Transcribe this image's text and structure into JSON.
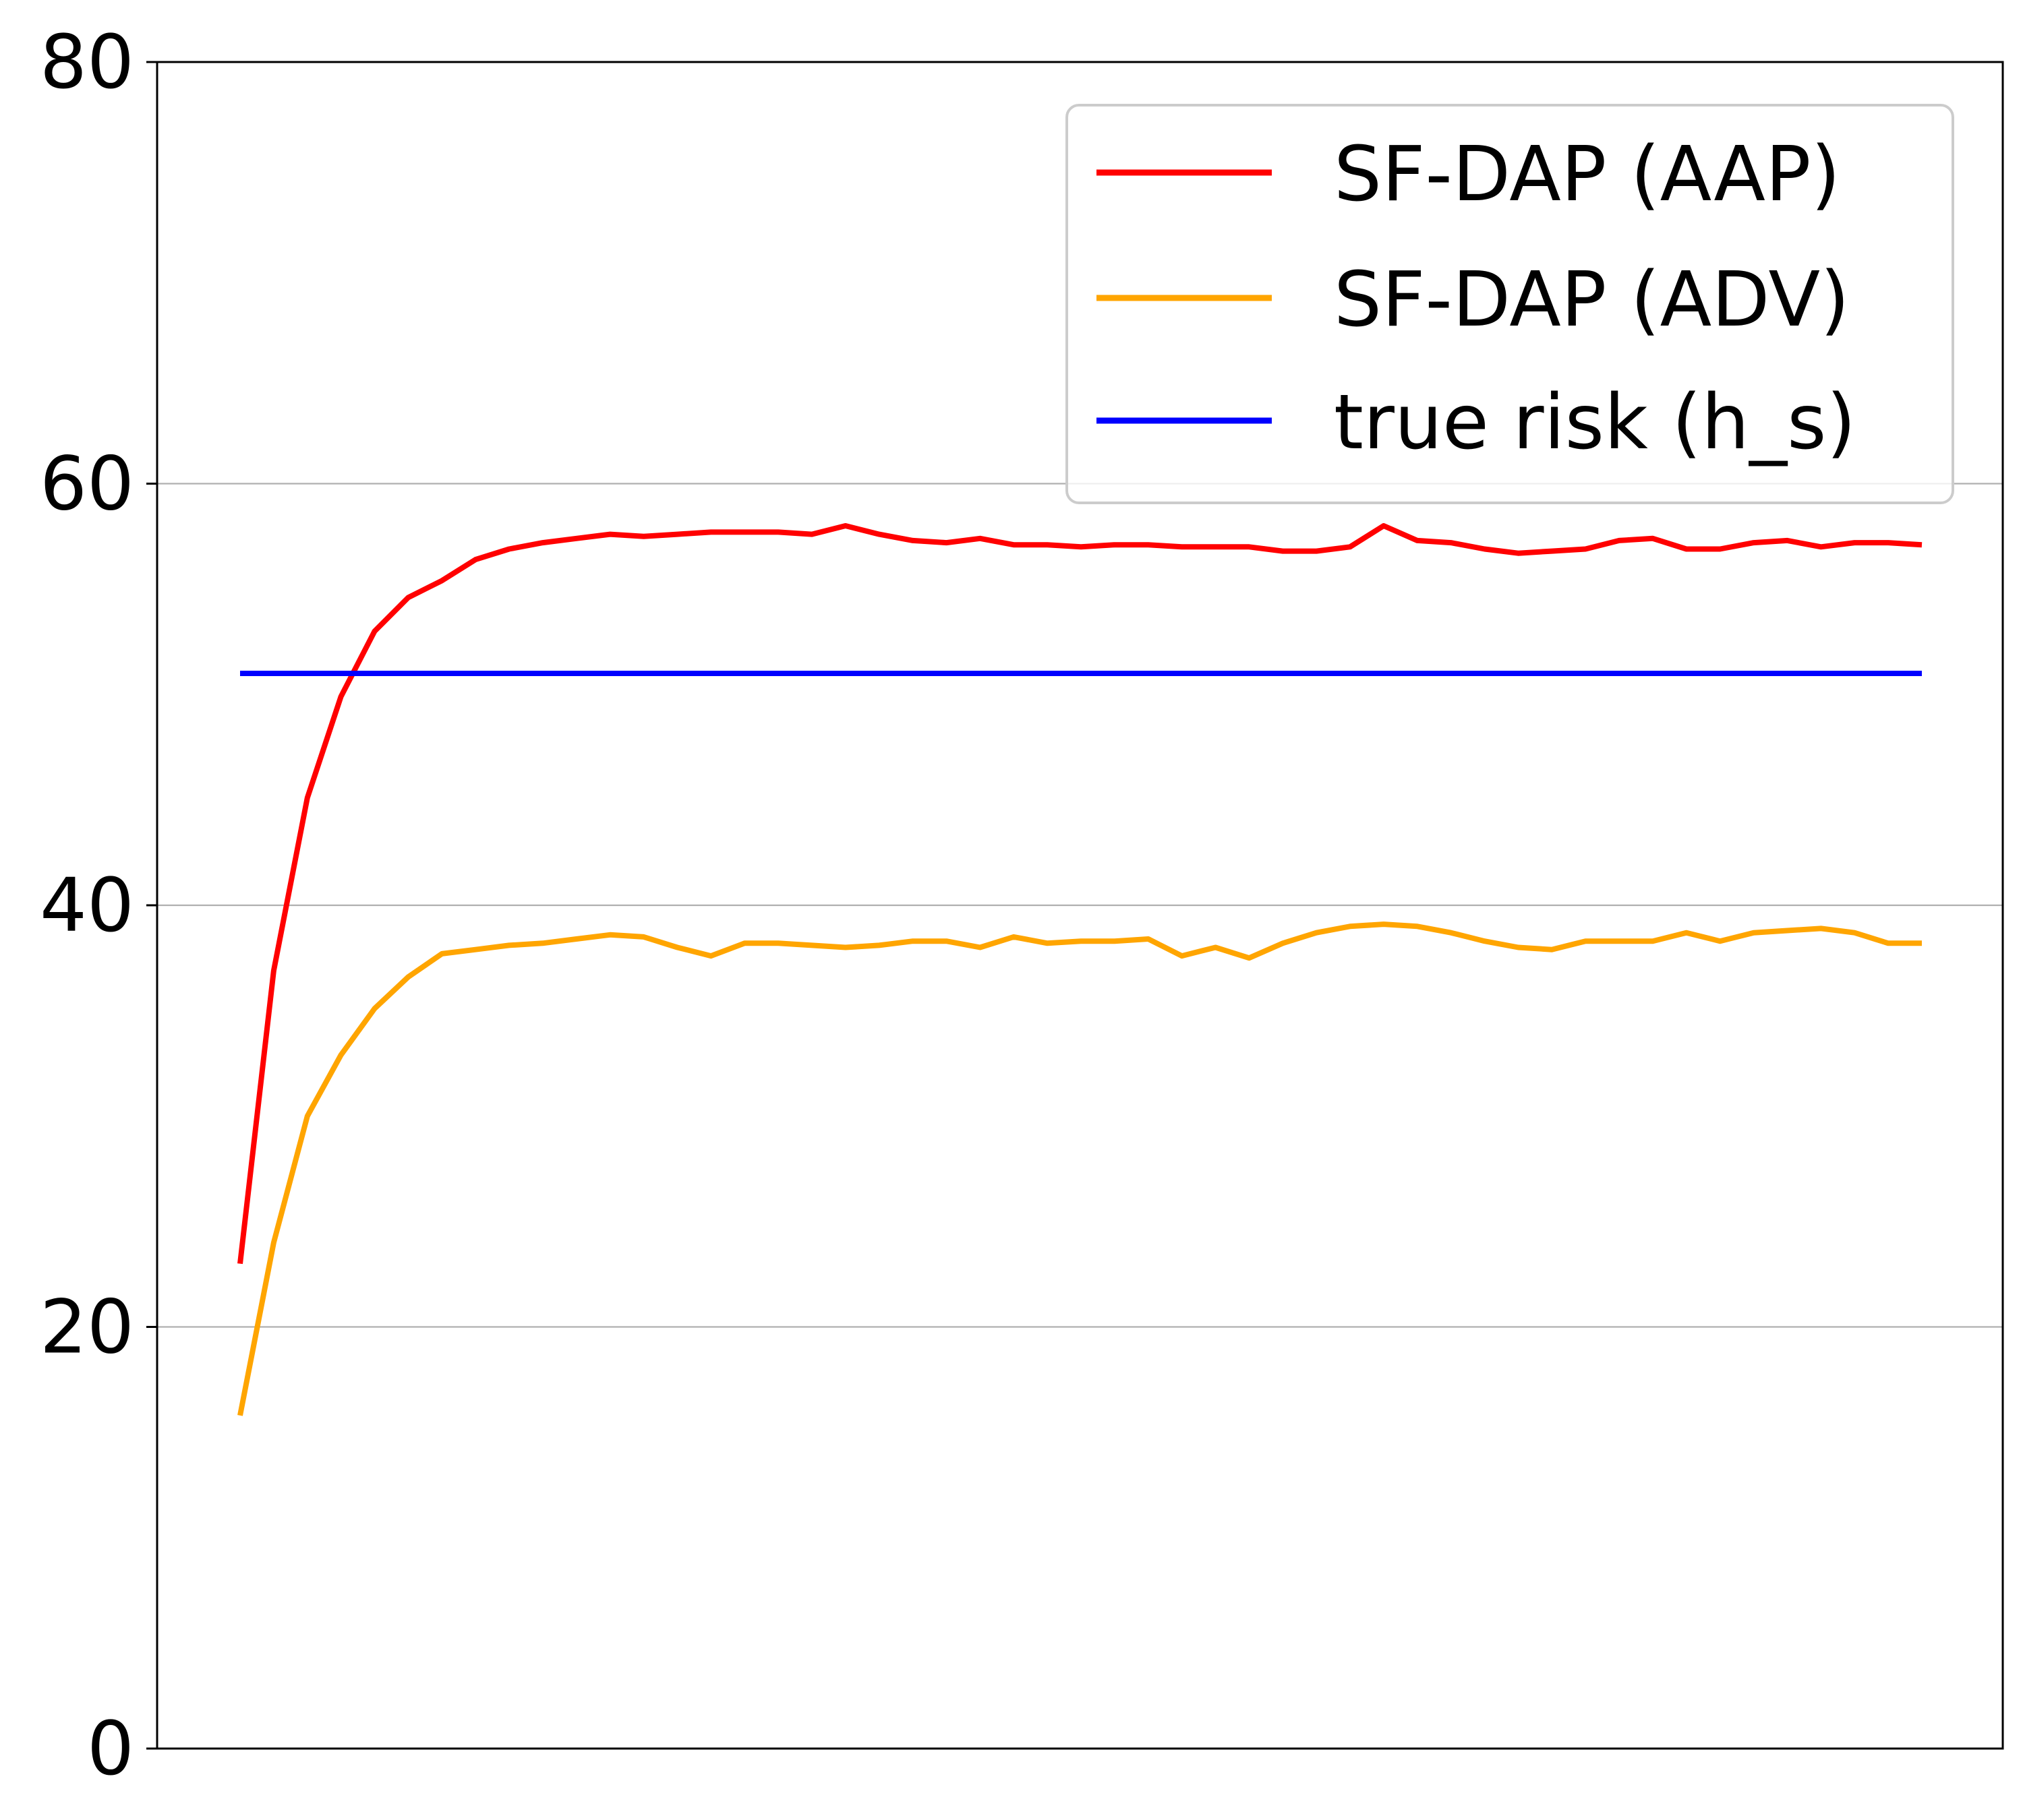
{
  "chart_data": {
    "type": "line",
    "title": "",
    "xlabel": "",
    "ylabel": "",
    "ylim": [
      0,
      80
    ],
    "yticks": [
      0,
      20,
      40,
      60,
      80
    ],
    "grid": "horizontal",
    "legend_position": "top-right",
    "x": [
      0,
      1,
      2,
      3,
      4,
      5,
      6,
      7,
      8,
      9,
      10,
      11,
      12,
      13,
      14,
      15,
      16,
      17,
      18,
      19,
      20,
      21,
      22,
      23,
      24,
      25,
      26,
      27,
      28,
      29,
      30,
      31,
      32,
      33,
      34,
      35,
      36,
      37,
      38,
      39,
      40,
      41,
      42,
      43,
      44,
      45,
      46,
      47,
      48,
      49,
      50
    ],
    "series": [
      {
        "name": "SF-DAP (AAP)",
        "color": "#ff0000",
        "values": [
          23.0,
          36.9,
          45.1,
          49.9,
          53.0,
          54.6,
          55.4,
          56.4,
          56.9,
          57.2,
          57.4,
          57.6,
          57.5,
          57.6,
          57.7,
          57.7,
          57.7,
          57.6,
          58.0,
          57.6,
          57.3,
          57.2,
          57.4,
          57.1,
          57.1,
          57.0,
          57.1,
          57.1,
          57.0,
          57.0,
          57.0,
          56.8,
          56.8,
          57.0,
          58.0,
          57.3,
          57.2,
          56.9,
          56.7,
          56.8,
          56.9,
          57.3,
          57.4,
          56.9,
          56.9,
          57.2,
          57.3,
          57.0,
          57.2,
          57.2,
          57.1
        ]
      },
      {
        "name": "SF-DAP (ADV)",
        "color": "#ffa500",
        "values": [
          15.8,
          24.0,
          30.0,
          32.9,
          35.1,
          36.6,
          37.7,
          37.9,
          38.1,
          38.2,
          38.4,
          38.6,
          38.5,
          38.0,
          37.6,
          38.2,
          38.2,
          38.1,
          38.0,
          38.1,
          38.3,
          38.3,
          38.0,
          38.5,
          38.2,
          38.3,
          38.3,
          38.4,
          37.6,
          38.0,
          37.5,
          38.2,
          38.7,
          39.0,
          39.1,
          39.0,
          38.7,
          38.3,
          38.0,
          37.9,
          38.3,
          38.3,
          38.3,
          38.7,
          38.3,
          38.7,
          38.8,
          38.9,
          38.7,
          38.2,
          38.2
        ]
      },
      {
        "name": "true risk (h_s)",
        "color": "#0000ff",
        "values": [
          51.0,
          51.0,
          51.0,
          51.0,
          51.0,
          51.0,
          51.0,
          51.0,
          51.0,
          51.0,
          51.0,
          51.0,
          51.0,
          51.0,
          51.0,
          51.0,
          51.0,
          51.0,
          51.0,
          51.0,
          51.0,
          51.0,
          51.0,
          51.0,
          51.0,
          51.0,
          51.0,
          51.0,
          51.0,
          51.0,
          51.0,
          51.0,
          51.0,
          51.0,
          51.0,
          51.0,
          51.0,
          51.0,
          51.0,
          51.0,
          51.0,
          51.0,
          51.0,
          51.0,
          51.0,
          51.0,
          51.0,
          51.0,
          51.0,
          51.0,
          51.0
        ]
      }
    ]
  }
}
